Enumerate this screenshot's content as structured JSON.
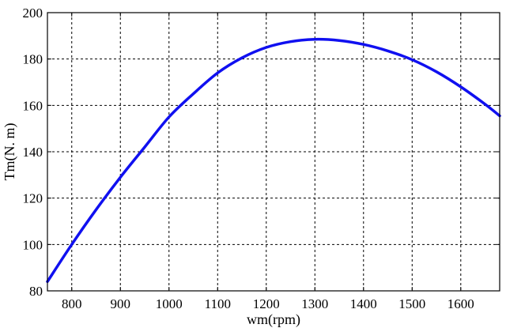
{
  "chart_data": {
    "type": "line",
    "title": "",
    "xlabel": "wm(rpm)",
    "ylabel": "Tm(N. m)",
    "xlim": [
      750,
      1680
    ],
    "ylim": [
      80,
      200
    ],
    "xticks": [
      800,
      900,
      1000,
      1100,
      1200,
      1300,
      1400,
      1500,
      1600
    ],
    "yticks": [
      80,
      100,
      120,
      140,
      160,
      180,
      200
    ],
    "grid": true,
    "series": [
      {
        "color": "#1010f0",
        "points": [
          [
            750,
            84
          ],
          [
            800,
            100
          ],
          [
            850,
            115
          ],
          [
            900,
            129
          ],
          [
            950,
            142
          ],
          [
            1000,
            155
          ],
          [
            1050,
            165
          ],
          [
            1100,
            174
          ],
          [
            1150,
            180.5
          ],
          [
            1200,
            185
          ],
          [
            1250,
            187.5
          ],
          [
            1300,
            188.5
          ],
          [
            1350,
            188
          ],
          [
            1400,
            186.3
          ],
          [
            1450,
            183.5
          ],
          [
            1500,
            179.7
          ],
          [
            1550,
            174.5
          ],
          [
            1600,
            168
          ],
          [
            1650,
            160.5
          ],
          [
            1680,
            155.5
          ]
        ]
      }
    ]
  }
}
